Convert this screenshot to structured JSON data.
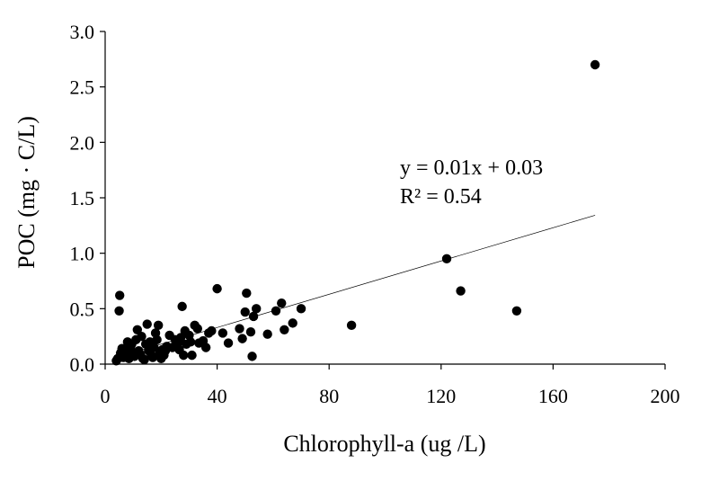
{
  "chart_data": {
    "type": "scatter",
    "title": "",
    "xlabel": "Chlorophyll-a (ug /L)",
    "ylabel": "POC (mg · C/L)",
    "xlim": [
      0,
      200
    ],
    "ylim": [
      0,
      3.0
    ],
    "x_ticks": [
      "0",
      "40",
      "80",
      "120",
      "160",
      "200"
    ],
    "y_ticks": [
      "0.0",
      "0.5",
      "1.0",
      "1.5",
      "2.0",
      "2.5",
      "3.0"
    ],
    "grid": false,
    "legend": "none",
    "trendline": {
      "equation": "y = 0.01x + 0.03",
      "r_squared": "R² = 0.54",
      "slope": 0.0075,
      "intercept": 0.03,
      "x_range": [
        4,
        175
      ]
    },
    "series": [
      {
        "color": "#000000",
        "points": [
          [
            4,
            0.03
          ],
          [
            4.5,
            0.05
          ],
          [
            5,
            0.48
          ],
          [
            5.2,
            0.62
          ],
          [
            5.5,
            0.1
          ],
          [
            6,
            0.14
          ],
          [
            6.5,
            0.06
          ],
          [
            7,
            0.08
          ],
          [
            7.5,
            0.12
          ],
          [
            8,
            0.2
          ],
          [
            8.5,
            0.05
          ],
          [
            9,
            0.15
          ],
          [
            9.5,
            0.18
          ],
          [
            10,
            0.1
          ],
          [
            10.5,
            0.07
          ],
          [
            11,
            0.22
          ],
          [
            11.5,
            0.31
          ],
          [
            12,
            0.12
          ],
          [
            12.5,
            0.09
          ],
          [
            13,
            0.25
          ],
          [
            13.5,
            0.05
          ],
          [
            14,
            0.04
          ],
          [
            14.5,
            0.18
          ],
          [
            15,
            0.36
          ],
          [
            15.5,
            0.12
          ],
          [
            16,
            0.2
          ],
          [
            16.5,
            0.08
          ],
          [
            17,
            0.06
          ],
          [
            17.5,
            0.15
          ],
          [
            18,
            0.28
          ],
          [
            18.5,
            0.22
          ],
          [
            19,
            0.35
          ],
          [
            19.5,
            0.1
          ],
          [
            20,
            0.05
          ],
          [
            20.5,
            0.13
          ],
          [
            21,
            0.08
          ],
          [
            21.5,
            0.12
          ],
          [
            22,
            0.16
          ],
          [
            23,
            0.26
          ],
          [
            24,
            0.15
          ],
          [
            25,
            0.22
          ],
          [
            26,
            0.19
          ],
          [
            26.5,
            0.13
          ],
          [
            27,
            0.24
          ],
          [
            27.5,
            0.52
          ],
          [
            28,
            0.08
          ],
          [
            28.5,
            0.3
          ],
          [
            29,
            0.18
          ],
          [
            30,
            0.26
          ],
          [
            30.5,
            0.2
          ],
          [
            31,
            0.08
          ],
          [
            32,
            0.35
          ],
          [
            33,
            0.32
          ],
          [
            33.5,
            0.19
          ],
          [
            35,
            0.21
          ],
          [
            36,
            0.15
          ],
          [
            37,
            0.28
          ],
          [
            38,
            0.3
          ],
          [
            40,
            0.68
          ],
          [
            42,
            0.28
          ],
          [
            44,
            0.19
          ],
          [
            48,
            0.32
          ],
          [
            49,
            0.23
          ],
          [
            50,
            0.47
          ],
          [
            50.5,
            0.64
          ],
          [
            52,
            0.29
          ],
          [
            52.5,
            0.07
          ],
          [
            53,
            0.43
          ],
          [
            54,
            0.5
          ],
          [
            58,
            0.27
          ],
          [
            61,
            0.48
          ],
          [
            63,
            0.55
          ],
          [
            64,
            0.31
          ],
          [
            67,
            0.37
          ],
          [
            70,
            0.5
          ],
          [
            88,
            0.35
          ],
          [
            122,
            0.95
          ],
          [
            127,
            0.66
          ],
          [
            147,
            0.48
          ],
          [
            175,
            2.7
          ]
        ]
      }
    ]
  }
}
